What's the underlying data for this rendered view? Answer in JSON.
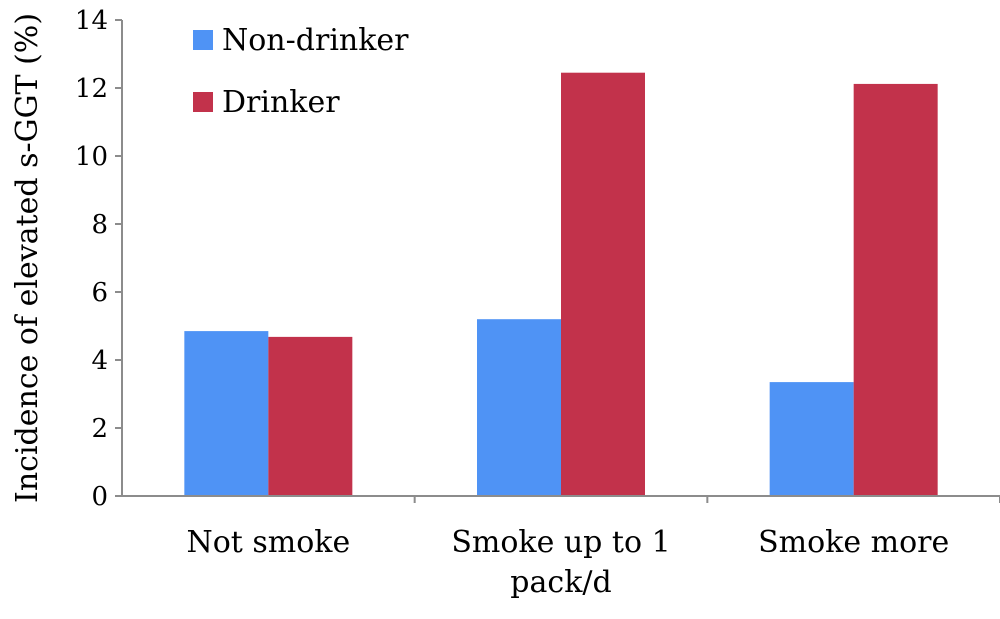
{
  "chart_data": {
    "type": "bar",
    "title": "",
    "xlabel": "",
    "ylabel": "Incidence of elevated s-GGT (%)",
    "categories": [
      [
        "Not smoke"
      ],
      [
        "Smoke up to 1",
        "pack/d"
      ],
      [
        "Smoke more"
      ]
    ],
    "series": [
      {
        "name": "Non-drinker",
        "color": "#4f93f5",
        "values": [
          4.85,
          5.2,
          3.35
        ]
      },
      {
        "name": "Drinker",
        "color": "#c2324b",
        "values": [
          4.68,
          12.45,
          12.12
        ]
      }
    ],
    "ylim": [
      0,
      14
    ],
    "yticks": [
      0,
      2,
      4,
      6,
      8,
      10,
      12,
      14
    ],
    "grid": false,
    "legend_position": "top-left"
  }
}
